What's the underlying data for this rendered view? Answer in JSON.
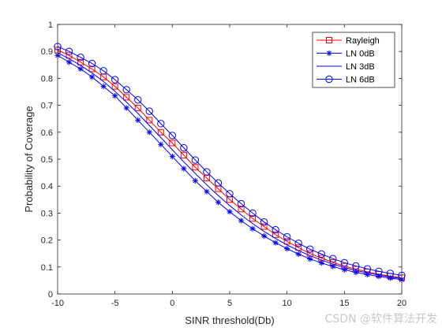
{
  "chart_data": {
    "type": "line",
    "xlabel": "SINR threshold(Db)",
    "ylabel": "Probability of Coverage",
    "xlim": [
      -10,
      20
    ],
    "ylim": [
      0,
      1
    ],
    "x_ticks": [
      "-10",
      "-5",
      "0",
      "5",
      "10",
      "15",
      "20"
    ],
    "y_ticks": [
      "0",
      "0.1",
      "0.2",
      "0.3",
      "0.4",
      "0.5",
      "0.6",
      "0.7",
      "0.8",
      "0.9",
      "1"
    ],
    "grid": false,
    "legend_position": "top-right",
    "x": [
      -10,
      -9,
      -8,
      -7,
      -6,
      -5,
      -4,
      -3,
      -2,
      -1,
      0,
      1,
      2,
      3,
      4,
      5,
      6,
      7,
      8,
      9,
      10,
      11,
      12,
      13,
      14,
      15,
      16,
      17,
      18,
      19,
      20
    ],
    "series": [
      {
        "name": "Rayleigh",
        "color": "#ff0000",
        "marker": "square",
        "values": [
          0.905,
          0.885,
          0.86,
          0.835,
          0.805,
          0.77,
          0.73,
          0.69,
          0.645,
          0.6,
          0.56,
          0.515,
          0.47,
          0.43,
          0.39,
          0.35,
          0.315,
          0.28,
          0.25,
          0.22,
          0.195,
          0.172,
          0.15,
          0.133,
          0.117,
          0.103,
          0.092,
          0.082,
          0.073,
          0.066,
          0.06
        ]
      },
      {
        "name": "LN 0dB",
        "color": "#0000ff",
        "marker": "star",
        "values": [
          0.885,
          0.86,
          0.835,
          0.805,
          0.77,
          0.735,
          0.69,
          0.645,
          0.6,
          0.555,
          0.51,
          0.465,
          0.42,
          0.38,
          0.34,
          0.305,
          0.272,
          0.242,
          0.215,
          0.19,
          0.168,
          0.148,
          0.13,
          0.115,
          0.102,
          0.09,
          0.08,
          0.072,
          0.065,
          0.059,
          0.053
        ]
      },
      {
        "name": "LN 3dB",
        "color": "#0000ff",
        "marker": "none",
        "values": [
          0.895,
          0.873,
          0.848,
          0.82,
          0.788,
          0.752,
          0.712,
          0.67,
          0.625,
          0.58,
          0.535,
          0.49,
          0.447,
          0.405,
          0.365,
          0.328,
          0.293,
          0.261,
          0.232,
          0.206,
          0.182,
          0.161,
          0.142,
          0.126,
          0.111,
          0.098,
          0.087,
          0.078,
          0.07,
          0.063,
          0.057
        ]
      },
      {
        "name": "LN 6dB",
        "color": "#0000ff",
        "marker": "circle",
        "values": [
          0.918,
          0.9,
          0.878,
          0.855,
          0.828,
          0.795,
          0.758,
          0.72,
          0.678,
          0.632,
          0.588,
          0.542,
          0.497,
          0.453,
          0.412,
          0.372,
          0.335,
          0.3,
          0.267,
          0.238,
          0.212,
          0.188,
          0.166,
          0.148,
          0.131,
          0.116,
          0.104,
          0.093,
          0.084,
          0.076,
          0.069
        ]
      }
    ]
  },
  "watermark": "CSDN @软件算法开发"
}
